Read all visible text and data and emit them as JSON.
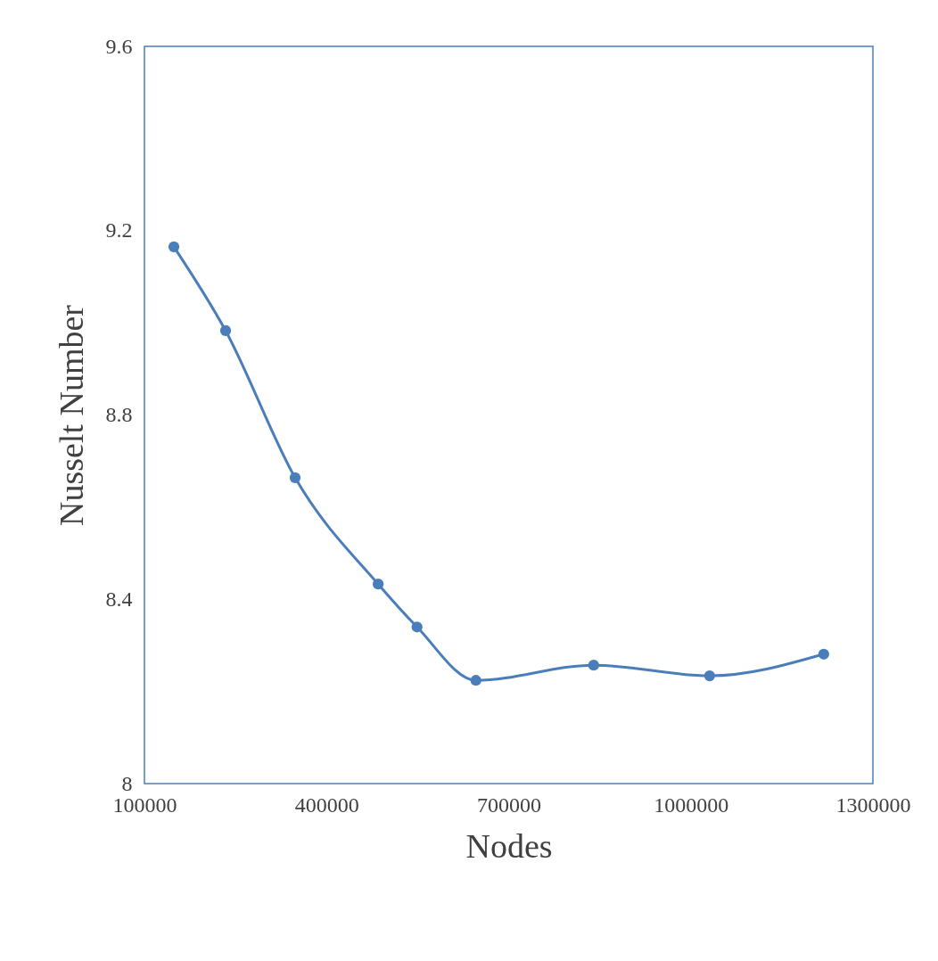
{
  "chart_data": {
    "type": "line",
    "xlabel": "Nodes",
    "ylabel": "Nusselt Number",
    "x": [
      148500,
      233700,
      348200,
      485000,
      549000,
      646000,
      840000,
      1031000,
      1219000
    ],
    "series": [
      {
        "color": "#4a7ebb",
        "values": [
          9.165,
          8.983,
          8.664,
          8.433,
          8.34,
          8.224,
          8.257,
          8.234,
          8.281
        ]
      }
    ],
    "xlim": [
      100000,
      1300000
    ],
    "xticks": [
      100000,
      400000,
      700000,
      1000000,
      1300000
    ],
    "ylim": [
      8,
      9.6
    ],
    "yticks": [
      8,
      8.4,
      8.8,
      9.2,
      9.6
    ],
    "grid": false,
    "marker": "circle",
    "line_style": "solid"
  }
}
